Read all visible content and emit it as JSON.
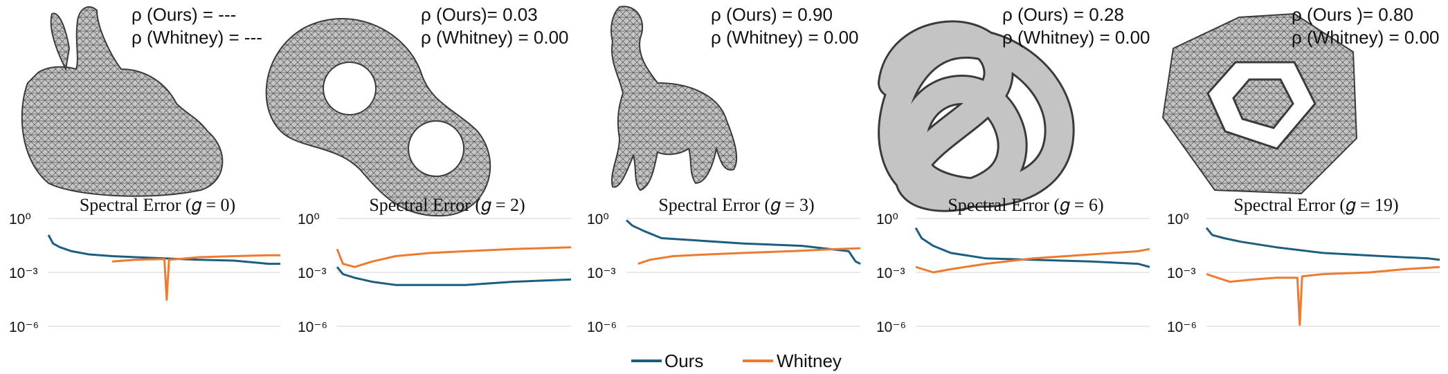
{
  "colors": {
    "ours": "#1b5e80",
    "whitney": "#ee7a30",
    "mesh": "#bdbdbd",
    "grid": "#dcdcdc"
  },
  "legend": [
    {
      "label": "Ours",
      "color": "#1b5e80"
    },
    {
      "label": "Whitney",
      "color": "#ee7a30"
    }
  ],
  "meshes": [
    {
      "name": "bunny-mesh",
      "label_ours": "ρ (Ours) = ---",
      "label_whitney": "ρ (Whitney) = ---"
    },
    {
      "name": "double-torus-mesh",
      "label_ours": "ρ (Ours)= 0.03",
      "label_whitney": "ρ (Whitney) = 0.00"
    },
    {
      "name": "elephant-mesh",
      "label_ours": "ρ  (Ours) = 0.90",
      "label_whitney": "ρ (Whitney) = 0.00"
    },
    {
      "name": "knot-mesh",
      "label_ours": "ρ (Ours) = 0.28",
      "label_whitney": "ρ (Whitney) = 0.00"
    },
    {
      "name": "icosahedral-lattice-mesh",
      "label_ours": "ρ (Ours )= 0.80",
      "label_whitney": "ρ (Whitney) = 0.00"
    }
  ],
  "chart_data": [
    {
      "type": "line",
      "title": "Spectral Error (𝑔 = 0)",
      "yscale": "log",
      "ylim": [
        1e-06,
        1
      ],
      "yticks": [
        {
          "value": 1,
          "label": "10⁰"
        },
        {
          "value": 0.001,
          "label": "10⁻³"
        },
        {
          "value": 1e-06,
          "label": "10⁻⁶"
        }
      ],
      "x_range": [
        0,
        200
      ],
      "grid": true,
      "series": [
        {
          "name": "Ours",
          "x": [
            0,
            4,
            10,
            20,
            35,
            55,
            75,
            100,
            130,
            160,
            190,
            200
          ],
          "y": [
            0.12,
            0.04,
            0.025,
            0.015,
            0.01,
            0.008,
            0.007,
            0.006,
            0.005,
            0.0045,
            0.003,
            0.003
          ]
        },
        {
          "name": "Whitney",
          "x": [
            55,
            75,
            100,
            102,
            104,
            130,
            160,
            190,
            200
          ],
          "y": [
            0.004,
            0.005,
            0.0055,
            3e-05,
            0.005,
            0.007,
            0.008,
            0.009,
            0.009
          ]
        }
      ]
    },
    {
      "type": "line",
      "title": "Spectral Error (𝑔 = 2)",
      "yscale": "log",
      "ylim": [
        1e-06,
        1
      ],
      "yticks": [
        {
          "value": 1,
          "label": "10⁰"
        },
        {
          "value": 0.001,
          "label": "10⁻³"
        },
        {
          "value": 1e-06,
          "label": "10⁻⁶"
        }
      ],
      "x_range": [
        0,
        200
      ],
      "grid": true,
      "series": [
        {
          "name": "Ours",
          "x": [
            0,
            5,
            15,
            30,
            50,
            80,
            110,
            150,
            200
          ],
          "y": [
            0.002,
            0.0008,
            0.0005,
            0.0003,
            0.0002,
            0.0002,
            0.0002,
            0.0003,
            0.0004
          ]
        },
        {
          "name": "Whitney",
          "x": [
            0,
            5,
            15,
            30,
            50,
            80,
            110,
            150,
            200
          ],
          "y": [
            0.02,
            0.003,
            0.002,
            0.004,
            0.008,
            0.012,
            0.015,
            0.02,
            0.025
          ]
        }
      ]
    },
    {
      "type": "line",
      "title": "Spectral Error (𝑔 = 3)",
      "yscale": "log",
      "ylim": [
        1e-06,
        1
      ],
      "yticks": [
        {
          "value": 1,
          "label": "10⁰"
        },
        {
          "value": 0.001,
          "label": "10⁻³"
        },
        {
          "value": 1e-06,
          "label": "10⁻⁶"
        }
      ],
      "x_range": [
        0,
        200
      ],
      "grid": true,
      "series": [
        {
          "name": "Ours",
          "x": [
            0,
            5,
            15,
            30,
            60,
            100,
            150,
            190,
            196,
            200
          ],
          "y": [
            0.8,
            0.4,
            0.2,
            0.08,
            0.06,
            0.04,
            0.03,
            0.015,
            0.004,
            0.003
          ]
        },
        {
          "name": "Whitney",
          "x": [
            10,
            20,
            40,
            70,
            100,
            140,
            180,
            200
          ],
          "y": [
            0.003,
            0.005,
            0.008,
            0.01,
            0.012,
            0.015,
            0.02,
            0.022
          ]
        }
      ]
    },
    {
      "type": "line",
      "title": "Spectral Error (𝑔 = 6)",
      "yscale": "log",
      "ylim": [
        1e-06,
        1
      ],
      "yticks": [
        {
          "value": 1,
          "label": "10⁰"
        },
        {
          "value": 0.001,
          "label": "10⁻³"
        },
        {
          "value": 1e-06,
          "label": "10⁻⁶"
        }
      ],
      "x_range": [
        0,
        200
      ],
      "grid": true,
      "series": [
        {
          "name": "Ours",
          "x": [
            0,
            5,
            15,
            30,
            60,
            100,
            150,
            190,
            200
          ],
          "y": [
            0.3,
            0.08,
            0.03,
            0.012,
            0.006,
            0.005,
            0.004,
            0.003,
            0.002
          ]
        },
        {
          "name": "Whitney",
          "x": [
            0,
            15,
            30,
            60,
            100,
            150,
            190,
            200
          ],
          "y": [
            0.002,
            0.001,
            0.0015,
            0.003,
            0.006,
            0.01,
            0.015,
            0.02
          ]
        }
      ]
    },
    {
      "type": "line",
      "title": "Spectral Error (𝑔 = 19)",
      "yscale": "log",
      "ylim": [
        1e-06,
        1
      ],
      "yticks": [
        {
          "value": 1,
          "label": "10⁰"
        },
        {
          "value": 0.001,
          "label": "10⁻³"
        },
        {
          "value": 1e-06,
          "label": "10⁻⁶"
        }
      ],
      "x_range": [
        0,
        200
      ],
      "grid": true,
      "series": [
        {
          "name": "Ours",
          "x": [
            0,
            5,
            15,
            30,
            60,
            100,
            150,
            190,
            200
          ],
          "y": [
            0.3,
            0.12,
            0.08,
            0.05,
            0.025,
            0.012,
            0.008,
            0.006,
            0.005
          ]
        },
        {
          "name": "Whitney",
          "x": [
            0,
            20,
            40,
            60,
            78,
            80,
            82,
            100,
            140,
            170,
            200
          ],
          "y": [
            0.0008,
            0.0003,
            0.0004,
            0.0005,
            0.0005,
            1.2e-06,
            0.0006,
            0.0008,
            0.001,
            0.0015,
            0.002
          ]
        }
      ]
    }
  ]
}
